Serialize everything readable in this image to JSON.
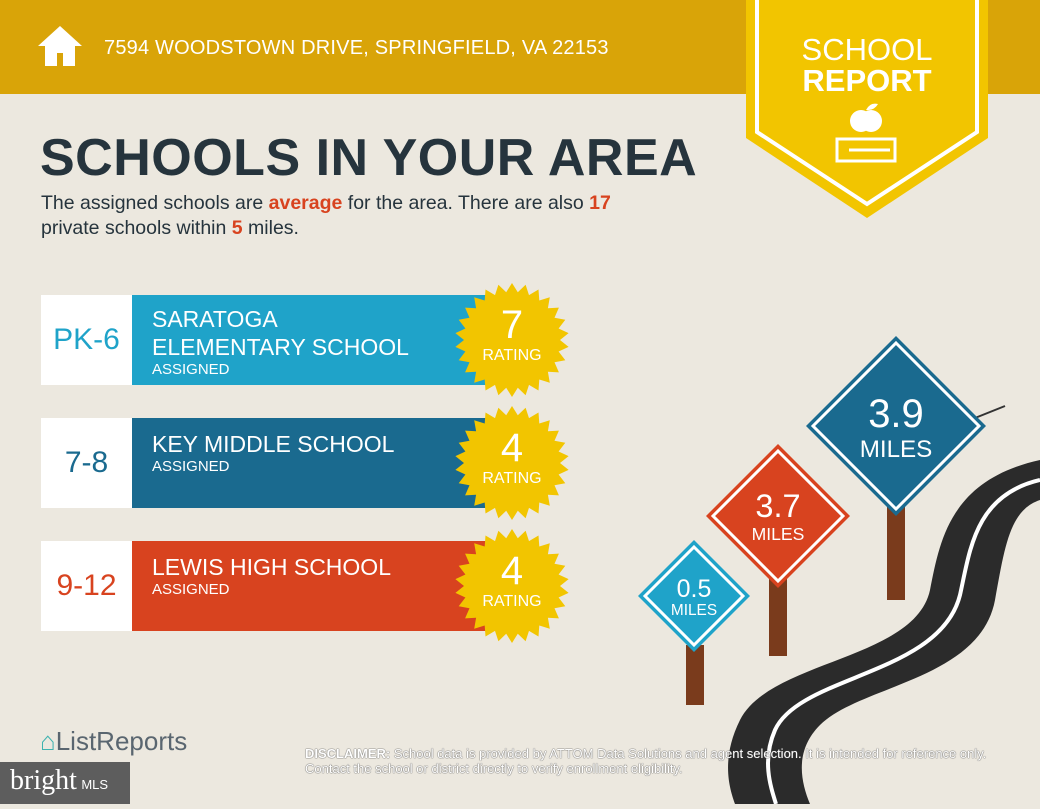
{
  "header": {
    "address": "7594 WOODSTOWN DRIVE, SPRINGFIELD, VA 22153",
    "icon": "home-icon"
  },
  "badge": {
    "line1": "SCHOOL",
    "line2": "REPORT",
    "icon": "apple-on-book-icon"
  },
  "title": "SCHOOLS IN YOUR AREA",
  "summary": {
    "p1": "The assigned schools are ",
    "rating_word": "average",
    "p2": " for the area. There are also ",
    "private_count": "17",
    "p3": " private schools within ",
    "miles": "5",
    "p4": " miles."
  },
  "schools": [
    {
      "grades": "PK-6",
      "name_line1": "SARATOGA",
      "name_line2": "ELEMENTARY SCHOOL",
      "status": "ASSIGNED",
      "rating": "7",
      "rating_label": "RATING",
      "color": "#1fa3c9",
      "grade_color": "#1fa3c9"
    },
    {
      "grades": "7-8",
      "name_line1": "KEY MIDDLE SCHOOL",
      "name_line2": "",
      "status": "ASSIGNED",
      "rating": "4",
      "rating_label": "RATING",
      "color": "#1a6a8f",
      "grade_color": "#1a6a8f"
    },
    {
      "grades": "9-12",
      "name_line1": "LEWIS HIGH SCHOOL",
      "name_line2": "",
      "status": "ASSIGNED",
      "rating": "4",
      "rating_label": "RATING",
      "color": "#d8431f",
      "grade_color": "#d8431f"
    }
  ],
  "distances": [
    {
      "value": "0.5",
      "unit": "MILES",
      "color": "#1fa3c9"
    },
    {
      "value": "3.7",
      "unit": "MILES",
      "color": "#d8431f"
    },
    {
      "value": "3.9",
      "unit": "MILES",
      "color": "#1a6a8f"
    }
  ],
  "footer": {
    "disclaimer_label": "DISCLAIMER:",
    "disclaimer_text": " School data is provided by ATTOM Data Solutions and agent selection. It is intended for reference only. Contact the school or district directly to verify enrollment eligibility.",
    "brand": "ListReports",
    "mls_brand": "bright",
    "mls_suffix": "MLS"
  },
  "colors": {
    "header": "#d9a408",
    "badge": "#f2c500",
    "star": "#f2c500",
    "background": "#ece8df"
  }
}
